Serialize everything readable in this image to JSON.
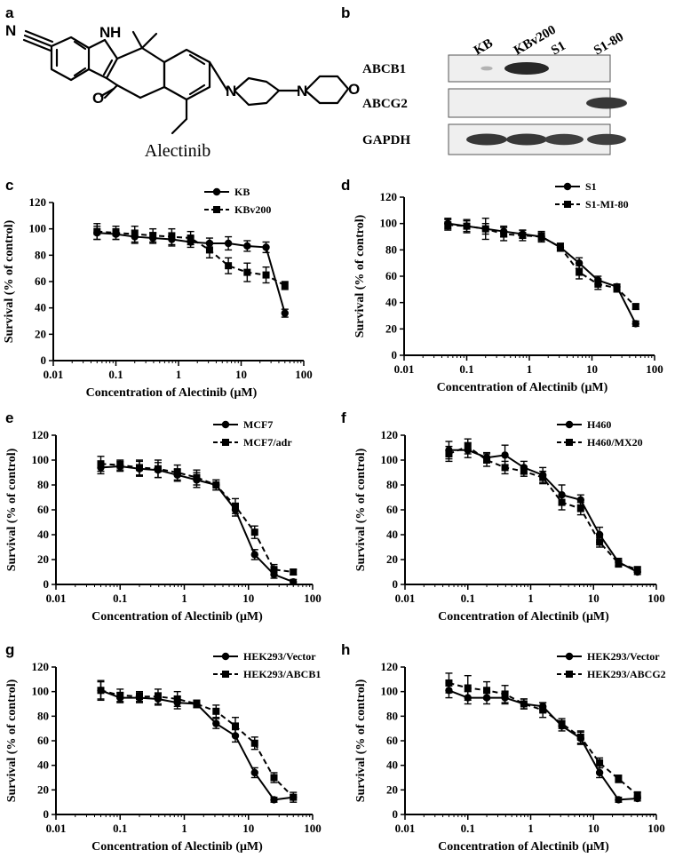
{
  "panels": {
    "a": "a",
    "b": "b"
  },
  "molecule": {
    "name": "Alectinib",
    "atoms": {
      "N_nitrile": "N",
      "NH": "N",
      "H": "H",
      "O_ketone": "O",
      "N_pip": "N",
      "N_morph": "N",
      "O_morph": "O"
    }
  },
  "western_blot": {
    "lanes": [
      "KB",
      "KBv200",
      "S1",
      "S1-80"
    ],
    "rows": [
      {
        "label": "ABCB1",
        "bands": [
          0.08,
          1.0,
          0.0,
          0.0
        ]
      },
      {
        "label": "ABCG2",
        "bands": [
          0.0,
          0.0,
          0.0,
          0.9
        ]
      },
      {
        "label": "GAPDH",
        "bands": [
          0.9,
          0.9,
          0.85,
          0.85
        ]
      }
    ]
  },
  "chart_data": [
    {
      "panel": "c",
      "type": "line",
      "x_scale": "log",
      "xlabel": "Concentration of Alectinib (μM)",
      "ylabel": "Survival (% of control)",
      "xlim": [
        0.01,
        100
      ],
      "ylim": [
        0,
        120
      ],
      "xticks": [
        "0.01",
        "0.1",
        "1",
        "10",
        "100"
      ],
      "yticks": [
        "0",
        "20",
        "40",
        "60",
        "80",
        "100",
        "120"
      ],
      "legend_position": "top-right",
      "x": [
        0.05,
        0.1,
        0.2,
        0.39,
        0.78,
        1.56,
        3.13,
        6.25,
        12.5,
        25,
        50
      ],
      "series": [
        {
          "name": "KB",
          "style": "solid",
          "marker": "circle",
          "values": [
            97,
            96,
            94,
            93,
            92,
            90,
            89,
            89,
            87,
            86,
            36
          ],
          "errors": [
            5,
            4,
            5,
            4,
            5,
            4,
            4,
            5,
            4,
            4,
            3
          ]
        },
        {
          "name": "KBv200",
          "style": "dashed",
          "marker": "square",
          "values": [
            98,
            97,
            96,
            95,
            94,
            93,
            84,
            72,
            67,
            65,
            57
          ],
          "errors": [
            6,
            5,
            6,
            5,
            6,
            5,
            6,
            6,
            7,
            6,
            3
          ]
        }
      ]
    },
    {
      "panel": "d",
      "type": "line",
      "x_scale": "log",
      "xlabel": "Concentration of Alectinib (μM)",
      "ylabel": "Survival (% of control)",
      "xlim": [
        0.01,
        100
      ],
      "ylim": [
        0,
        120
      ],
      "xticks": [
        "0.01",
        "0.1",
        "1",
        "10",
        "100"
      ],
      "yticks": [
        "0",
        "20",
        "40",
        "60",
        "80",
        "100",
        "120"
      ],
      "legend_position": "top-right",
      "x": [
        0.05,
        0.1,
        0.2,
        0.39,
        0.78,
        1.56,
        3.13,
        6.25,
        12.5,
        25,
        50
      ],
      "series": [
        {
          "name": "S1",
          "style": "solid",
          "marker": "circle",
          "values": [
            100,
            98,
            96,
            94,
            92,
            90,
            82,
            70,
            57,
            52,
            24
          ],
          "errors": [
            4,
            4,
            4,
            4,
            3,
            3,
            3,
            4,
            3,
            2,
            2
          ]
        },
        {
          "name": "S1-MI-80",
          "style": "dashed",
          "marker": "square",
          "values": [
            99,
            98,
            96,
            92,
            91,
            90,
            82,
            63,
            54,
            51,
            37
          ],
          "errors": [
            4,
            5,
            8,
            5,
            4,
            4,
            3,
            5,
            4,
            3,
            2
          ]
        }
      ]
    },
    {
      "panel": "e",
      "type": "line",
      "x_scale": "log",
      "xlabel": "Concentration of Alectinib (μM)",
      "ylabel": "Survival (% of control)",
      "xlim": [
        0.01,
        100
      ],
      "ylim": [
        0,
        120
      ],
      "xticks": [
        "0.01",
        "0.1",
        "1",
        "10",
        "100"
      ],
      "yticks": [
        "0",
        "20",
        "40",
        "60",
        "80",
        "100",
        "120"
      ],
      "legend_position": "top-right",
      "x": [
        0.05,
        0.1,
        0.2,
        0.39,
        0.78,
        1.56,
        3.13,
        6.25,
        12.5,
        25,
        50
      ],
      "series": [
        {
          "name": "MCF7",
          "style": "solid",
          "marker": "circle",
          "values": [
            94,
            95,
            93,
            92,
            88,
            84,
            80,
            60,
            24,
            8,
            2
          ],
          "errors": [
            5,
            4,
            6,
            6,
            5,
            6,
            4,
            5,
            4,
            3,
            2
          ]
        },
        {
          "name": "MCF7/adr",
          "style": "dashed",
          "marker": "square",
          "values": [
            97,
            96,
            94,
            93,
            90,
            86,
            80,
            63,
            42,
            12,
            10
          ],
          "errors": [
            6,
            4,
            6,
            7,
            6,
            6,
            4,
            6,
            5,
            4,
            2
          ]
        }
      ]
    },
    {
      "panel": "f",
      "type": "line",
      "x_scale": "log",
      "xlabel": "Concentration of Alectinib (μM)",
      "ylabel": "Survival (% of control)",
      "xlim": [
        0.01,
        100
      ],
      "ylim": [
        0,
        120
      ],
      "xticks": [
        "0.01",
        "0.1",
        "1",
        "10",
        "100"
      ],
      "yticks": [
        "0",
        "20",
        "40",
        "60",
        "80",
        "100",
        "120"
      ],
      "legend_position": "top-right",
      "x": [
        0.05,
        0.1,
        0.2,
        0.39,
        0.78,
        1.56,
        3.13,
        6.25,
        12.5,
        25,
        50
      ],
      "series": [
        {
          "name": "H460",
          "style": "solid",
          "marker": "circle",
          "values": [
            108,
            108,
            102,
            104,
            94,
            88,
            72,
            68,
            40,
            18,
            10
          ],
          "errors": [
            7,
            6,
            4,
            8,
            5,
            6,
            8,
            4,
            6,
            3,
            2
          ]
        },
        {
          "name": "H460/MX20",
          "style": "dashed",
          "marker": "square",
          "values": [
            105,
            111,
            100,
            94,
            91,
            86,
            66,
            61,
            34,
            17,
            12
          ],
          "errors": [
            6,
            6,
            5,
            5,
            4,
            5,
            6,
            5,
            4,
            3,
            2
          ]
        }
      ]
    },
    {
      "panel": "g",
      "type": "line",
      "x_scale": "log",
      "xlabel": "Concentration of Alectinib (μM)",
      "ylabel": "Survival (% of control)",
      "xlim": [
        0.01,
        100
      ],
      "ylim": [
        0,
        120
      ],
      "xticks": [
        "0.01",
        "0.1",
        "1",
        "10",
        "100"
      ],
      "yticks": [
        "0",
        "20",
        "40",
        "60",
        "80",
        "100",
        "120"
      ],
      "legend_position": "top-right",
      "x": [
        0.05,
        0.1,
        0.2,
        0.39,
        0.78,
        1.56,
        3.13,
        6.25,
        12.5,
        25,
        50
      ],
      "series": [
        {
          "name": "HEK293/Vector",
          "style": "solid",
          "marker": "circle",
          "values": [
            101,
            95,
            95,
            94,
            91,
            90,
            74,
            64,
            34,
            12,
            14
          ],
          "errors": [
            7,
            4,
            4,
            5,
            5,
            3,
            4,
            5,
            4,
            2,
            2
          ]
        },
        {
          "name": "HEK293/ABCB1",
          "style": "dashed",
          "marker": "square",
          "values": [
            101,
            97,
            96,
            96,
            94,
            90,
            84,
            72,
            58,
            30,
            14
          ],
          "errors": [
            8,
            5,
            4,
            6,
            6,
            3,
            5,
            7,
            5,
            4,
            4
          ]
        }
      ]
    },
    {
      "panel": "h",
      "type": "line",
      "x_scale": "log",
      "xlabel": "Concentration of Alectinib (μM)",
      "ylabel": "Survival (% of control)",
      "xlim": [
        0.01,
        100
      ],
      "ylim": [
        0,
        120
      ],
      "xticks": [
        "0.01",
        "0.1",
        "1",
        "10",
        "100"
      ],
      "yticks": [
        "0",
        "20",
        "40",
        "60",
        "80",
        "100",
        "120"
      ],
      "legend_position": "top-right",
      "x": [
        0.05,
        0.1,
        0.2,
        0.39,
        0.78,
        1.56,
        3.13,
        6.25,
        12.5,
        25,
        50
      ],
      "series": [
        {
          "name": "HEK293/Vector",
          "style": "solid",
          "marker": "circle",
          "values": [
            101,
            95,
            95,
            95,
            90,
            88,
            72,
            62,
            34,
            12,
            13
          ],
          "errors": [
            6,
            5,
            5,
            5,
            4,
            3,
            4,
            5,
            4,
            2,
            2
          ]
        },
        {
          "name": "HEK293/ABCG2",
          "style": "dashed",
          "marker": "square",
          "values": [
            107,
            103,
            101,
            98,
            90,
            85,
            74,
            63,
            42,
            29,
            16
          ],
          "errors": [
            8,
            10,
            7,
            7,
            4,
            6,
            4,
            5,
            4,
            3,
            2
          ]
        }
      ]
    }
  ]
}
